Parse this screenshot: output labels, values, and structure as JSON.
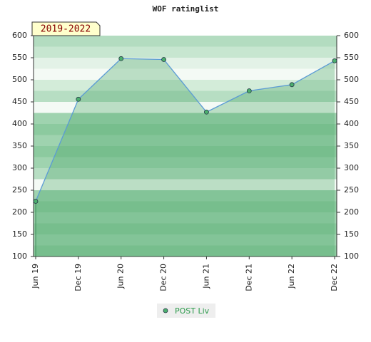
{
  "chart_data": {
    "type": "area",
    "title": "WOF ratinglist",
    "badge": "2019-2022",
    "categories": [
      "Jun 19",
      "Dec 19",
      "Jun 20",
      "Dec 20",
      "Jun 21",
      "Dec 21",
      "Jun 22",
      "Dec 22"
    ],
    "series": [
      {
        "name": "POST Liv",
        "color": "#5b9bd5",
        "values": [
          225,
          456,
          548,
          546,
          427,
          475,
          489,
          543
        ]
      }
    ],
    "ylim": [
      100,
      600
    ],
    "yticks": [
      100,
      150,
      200,
      250,
      300,
      350,
      400,
      450,
      500,
      550,
      600
    ]
  }
}
